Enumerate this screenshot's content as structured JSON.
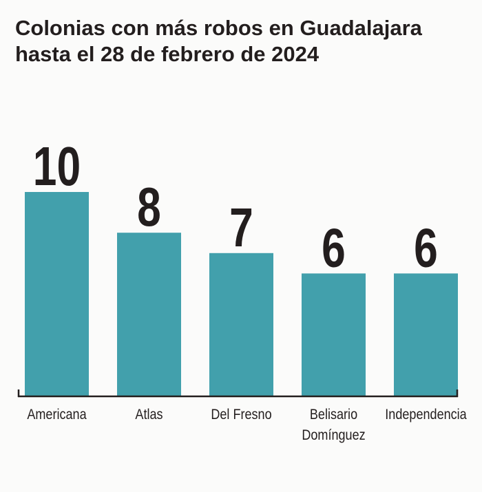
{
  "title_line1": "Colonias con más robos en Guadalajara",
  "title_line2": "hasta el 28 de febrero de 2024",
  "colors": {
    "bar": "#42a0ac",
    "text": "#231e1e",
    "axis": "#231e1e",
    "background": "#fbfbfa"
  },
  "chart_data": {
    "type": "bar",
    "title": "Colonias con más robos en Guadalajara hasta el 28 de febrero de 2024",
    "categories": [
      "Americana",
      "Atlas",
      "Del Fresno",
      "Belisario Domínguez",
      "Independencia"
    ],
    "category_lines": [
      [
        "Americana"
      ],
      [
        "Atlas"
      ],
      [
        "Del Fresno"
      ],
      [
        "Belisario",
        "Domínguez"
      ],
      [
        "Independencia"
      ]
    ],
    "values": [
      10,
      8,
      7,
      6,
      6
    ],
    "value_labels": [
      "10",
      "8",
      "7",
      "6",
      "6"
    ],
    "xlabel": "",
    "ylabel": "",
    "ylim": [
      0,
      10
    ],
    "grid": false,
    "legend": "none"
  }
}
